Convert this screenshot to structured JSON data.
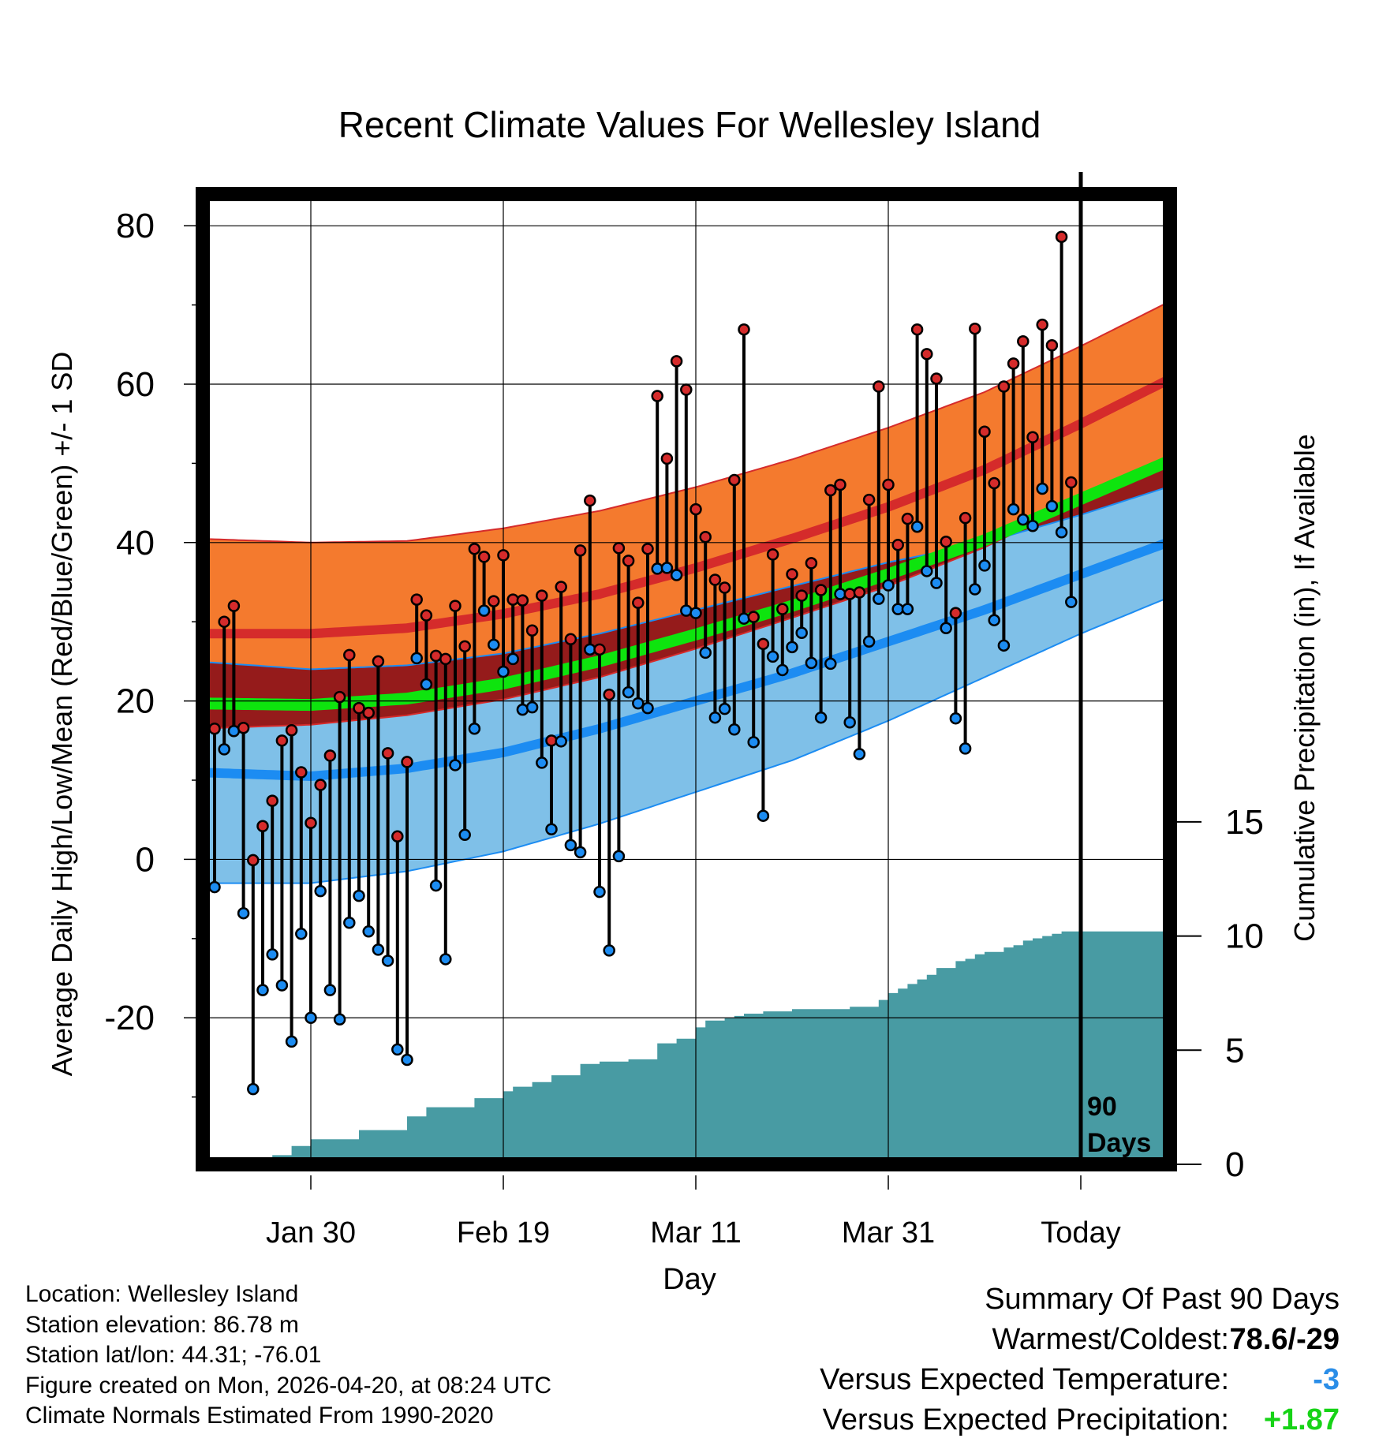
{
  "chart_data": {
    "type": "line",
    "title": "Recent Climate Values For Wellesley Island",
    "xlabel": "Day",
    "ylabel_left": "Average Daily High/Low/Mean (Red/Blue/Green) +/- 1 SD",
    "ylabel_right": "Cumulative Precipitation (in), If Available",
    "y_left_range": [
      -38.5,
      84
    ],
    "y_left_ticks": [
      80,
      60,
      40,
      20,
      0,
      -20
    ],
    "y_right_range": [
      0,
      42.5
    ],
    "y_right_ticks": [
      15,
      10,
      5,
      0
    ],
    "x_range_days": [
      -92,
      9
    ],
    "x_ticks": [
      {
        "day": -80,
        "label": "Jan 30"
      },
      {
        "day": -60,
        "label": "Feb 19"
      },
      {
        "day": -40,
        "label": "Mar 11"
      },
      {
        "day": -20,
        "label": "Mar 31"
      },
      {
        "day": 0,
        "label": "Today"
      }
    ],
    "today_marker_label": [
      "90",
      "Days"
    ],
    "normals": {
      "days": [
        -92,
        -80,
        -70,
        -60,
        -50,
        -40,
        -30,
        -20,
        -10,
        0,
        9
      ],
      "high_mean": [
        28.5,
        28.5,
        29.2,
        31,
        33.5,
        36.8,
        40.5,
        44.5,
        49.2,
        55,
        60.5
      ],
      "high_sd": [
        12,
        11.5,
        11,
        10.8,
        10.5,
        10.2,
        10,
        10,
        9.8,
        9.8,
        9.8
      ],
      "low_mean": [
        11,
        10.5,
        11.5,
        13.5,
        16.5,
        20,
        23.5,
        27.5,
        31.5,
        36,
        40
      ],
      "low_sd": [
        14,
        13.5,
        13,
        12.5,
        12,
        11.5,
        11,
        10,
        8.5,
        7.5,
        7
      ],
      "mean": [
        19.7,
        19.5,
        20.3,
        22.2,
        25,
        28.4,
        32,
        36,
        40.3,
        45.5,
        50.2
      ]
    },
    "observed": {
      "start_day": -90,
      "highs": [
        16.5,
        30,
        32,
        16.6,
        -0.1,
        4.2,
        7.4,
        15,
        16.3,
        11,
        4.6,
        9.4,
        13.1,
        20.5,
        25.8,
        19.1,
        18.5,
        25,
        13.4,
        2.9,
        12.3,
        32.8,
        30.8,
        25.7,
        25.3,
        32,
        26.9,
        39.2,
        38.2,
        32.6,
        38.4,
        32.8,
        32.7,
        28.9,
        33.3,
        15,
        34.4,
        27.8,
        39,
        45.3,
        26.5,
        20.8,
        39.3,
        37.7,
        32.4,
        39.2,
        58.5,
        50.6,
        62.9,
        59.3,
        44.2,
        40.7,
        35.3,
        34.3,
        47.9,
        66.9,
        30.6,
        27.2,
        38.5,
        31.6,
        36,
        33.3,
        37.4,
        34,
        46.6,
        47.3,
        33.5,
        33.7,
        45.4,
        59.7,
        47.3,
        39.7,
        43,
        66.9,
        63.8,
        60.7,
        40.1,
        31.1,
        43.1,
        67,
        54,
        47.5,
        59.7,
        62.6,
        65.4,
        53.3,
        67.5,
        64.9,
        78.6,
        47.6
      ],
      "lows": [
        -3.5,
        13.9,
        16.2,
        -6.8,
        -29,
        -16.5,
        -12,
        -15.9,
        -23,
        -9.4,
        -20,
        -4,
        -16.5,
        -20.2,
        -8,
        -4.6,
        -9.1,
        -11.4,
        -12.8,
        -24,
        -25.3,
        25.4,
        22.1,
        -3.3,
        -12.6,
        11.9,
        3.1,
        16.5,
        31.4,
        27.1,
        23.7,
        25.3,
        18.9,
        19.2,
        12.2,
        3.8,
        14.9,
        1.8,
        0.9,
        26.5,
        -4.1,
        -11.5,
        0.4,
        21.1,
        19.7,
        19.1,
        36.7,
        36.8,
        35.9,
        31.4,
        31.1,
        26.1,
        17.9,
        19,
        16.4,
        30.4,
        14.8,
        5.5,
        25.6,
        23.9,
        26.8,
        28.6,
        24.8,
        17.9,
        24.7,
        33.5,
        17.3,
        13.3,
        27.5,
        32.9,
        34.6,
        31.6,
        31.6,
        42,
        36.4,
        34.9,
        29.2,
        17.8,
        14,
        34.1,
        37.1,
        30.2,
        27,
        44.2,
        42.9,
        42.1,
        46.8,
        44.6,
        41.3,
        32.5
      ]
    },
    "precip": {
      "days": [
        -90,
        -85,
        -84,
        -82,
        -80,
        -77,
        -75,
        -72,
        -70,
        -68,
        -65,
        -63,
        -60,
        -59,
        -57,
        -55,
        -52,
        -50,
        -47,
        -45,
        -44,
        -42,
        -40,
        -39,
        -38,
        -37,
        -36,
        -35,
        -33,
        -32,
        -30,
        -29,
        -28,
        -27,
        -26,
        -25,
        -24,
        -23,
        -22,
        -21,
        -20,
        -19,
        -18,
        -17,
        -16,
        -15,
        -13,
        -12,
        -11,
        -10,
        -9,
        -8,
        -7,
        -6,
        -5,
        -4,
        -3,
        -2,
        -1,
        0,
        9
      ],
      "totals": [
        0,
        0,
        0.4,
        0.8,
        1.1,
        1.1,
        1.5,
        1.5,
        2.1,
        2.5,
        2.5,
        2.9,
        3.2,
        3.4,
        3.6,
        3.9,
        4.4,
        4.5,
        4.6,
        4.6,
        5.3,
        5.5,
        6.0,
        6.3,
        6.3,
        6.4,
        6.5,
        6.6,
        6.7,
        6.7,
        6.8,
        6.8,
        6.8,
        6.8,
        6.8,
        6.8,
        6.9,
        6.9,
        6.9,
        7.2,
        7.5,
        7.7,
        7.9,
        8.1,
        8.3,
        8.6,
        8.9,
        9.0,
        9.2,
        9.3,
        9.3,
        9.5,
        9.6,
        9.8,
        9.9,
        10.0,
        10.1,
        10.2,
        10.2,
        10.2,
        10.2
      ]
    }
  },
  "footer": {
    "location": "Location: Wellesley Island",
    "elevation": "Station elevation: 86.78 m",
    "latlon": "Station lat/lon: 44.31; -76.01",
    "created": "Figure created on Mon, 2026-04-20, at 08:24 UTC",
    "normals_period": "Climate Normals Estimated From 1990-2020"
  },
  "summary": {
    "title": "Summary Of Past 90 Days",
    "warmest_label": "Warmest/Coldest:",
    "warmest_value": "78.6/-29",
    "temp_label": "Versus Expected Temperature:",
    "temp_value": "-3",
    "precip_label": "Versus Expected Precipitation:",
    "precip_value": "+1.87",
    "colors": {
      "temp": "#2b8ee8",
      "precip": "#16d316",
      "neutral": "#000000"
    }
  },
  "colors": {
    "high_band": "#f47a2e",
    "high_line": "#d52b2b",
    "overlap": "#951b1b",
    "low_band": "#7fc0e8",
    "low_line": "#1c8cf2",
    "mean_line": "#0ee40e",
    "precip_fill": "#489ba3",
    "high_dot": "#d52b2b",
    "low_dot": "#1c8cf2"
  }
}
